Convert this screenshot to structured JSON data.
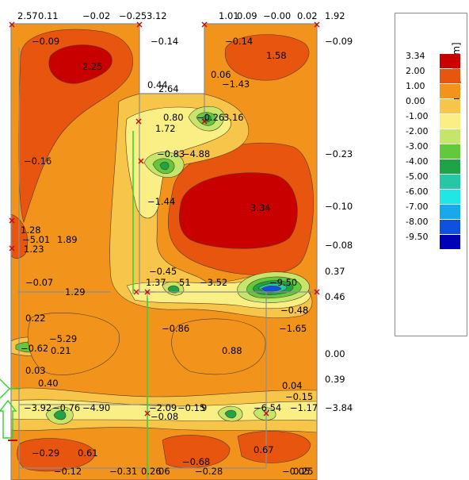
{
  "legend": {
    "unit_label": "mᵧ [kNm/m]",
    "entries": [
      {
        "value": "3.34",
        "color": "#c80000"
      },
      {
        "value": "2.00",
        "color": "#e8550f"
      },
      {
        "value": "1.00",
        "color": "#f2941c"
      },
      {
        "value": "0.00",
        "color": "#f6c549"
      },
      {
        "value": "-1.00",
        "color": "#f9ef84"
      },
      {
        "value": "-2.00",
        "color": "#c5e66b"
      },
      {
        "value": "-3.00",
        "color": "#63c93c"
      },
      {
        "value": "-4.00",
        "color": "#1ea347"
      },
      {
        "value": "-5.00",
        "color": "#27c6a4"
      },
      {
        "value": "-6.00",
        "color": "#20e6e6"
      },
      {
        "value": "-7.00",
        "color": "#18a8ee"
      },
      {
        "value": "-8.00",
        "color": "#1050e0"
      },
      {
        "value": "-9.50",
        "color": "#0000b4"
      }
    ]
  },
  "contour_values": [
    {
      "id": "v1",
      "text": "2.57"
    },
    {
      "id": "v2",
      "text": "0.11"
    },
    {
      "id": "v3",
      "text": "−0.02"
    },
    {
      "id": "v4",
      "text": "−0.25"
    },
    {
      "id": "v5",
      "text": "3.12"
    },
    {
      "id": "v6",
      "text": "1.01"
    },
    {
      "id": "v7",
      "text": "0.09"
    },
    {
      "id": "v8",
      "text": "−0.00"
    },
    {
      "id": "v9",
      "text": "0.02"
    },
    {
      "id": "v10",
      "text": "1.92"
    },
    {
      "id": "v11",
      "text": "−0.09"
    },
    {
      "id": "v12",
      "text": "−0.14"
    },
    {
      "id": "v13",
      "text": "−0.14"
    },
    {
      "id": "v14",
      "text": "−0.09"
    },
    {
      "id": "v15",
      "text": "2.25"
    },
    {
      "id": "v16",
      "text": "1.58"
    },
    {
      "id": "v17",
      "text": "0.06"
    },
    {
      "id": "v18",
      "text": "−1.43"
    },
    {
      "id": "v19",
      "text": "0.44"
    },
    {
      "id": "v20",
      "text": "2.64"
    },
    {
      "id": "v21",
      "text": "0.80"
    },
    {
      "id": "v22",
      "text": "−0.26"
    },
    {
      "id": "v23",
      "text": "3.16"
    },
    {
      "id": "v24",
      "text": "1.72"
    },
    {
      "id": "v25",
      "text": "−0.16"
    },
    {
      "id": "v26",
      "text": "−0.83"
    },
    {
      "id": "v27",
      "text": "−4.88"
    },
    {
      "id": "v28",
      "text": "−0.23"
    },
    {
      "id": "v29",
      "text": "−1.44"
    },
    {
      "id": "v30",
      "text": "3.34"
    },
    {
      "id": "v31",
      "text": "−0.10"
    },
    {
      "id": "v32",
      "text": "1.28"
    },
    {
      "id": "v33",
      "text": "−5.01"
    },
    {
      "id": "v34",
      "text": "1.89"
    },
    {
      "id": "v35",
      "text": "1.23"
    },
    {
      "id": "v36",
      "text": "−0.08"
    },
    {
      "id": "v37",
      "text": "0.37"
    },
    {
      "id": "v38",
      "text": "−0.45"
    },
    {
      "id": "v39",
      "text": "−0.07"
    },
    {
      "id": "v40",
      "text": "1.29"
    },
    {
      "id": "v41",
      "text": "1.37"
    },
    {
      "id": "v42",
      "text": "51"
    },
    {
      "id": "v43",
      "text": "−3.52"
    },
    {
      "id": "v44",
      "text": "−9.50"
    },
    {
      "id": "v45",
      "text": "0.46"
    },
    {
      "id": "v46",
      "text": "−0.48"
    },
    {
      "id": "v47",
      "text": "8"
    },
    {
      "id": "v48",
      "text": "0.22"
    },
    {
      "id": "v49",
      "text": "−0.86"
    },
    {
      "id": "v50",
      "text": "−1.65"
    },
    {
      "id": "v51",
      "text": "−5.29"
    },
    {
      "id": "v52",
      "text": "−0.62"
    },
    {
      "id": "v53",
      "text": "0.21"
    },
    {
      "id": "v54",
      "text": "0.88"
    },
    {
      "id": "v55",
      "text": "0.00"
    },
    {
      "id": "v56",
      "text": "0.03"
    },
    {
      "id": "v57",
      "text": "0.39"
    },
    {
      "id": "v58",
      "text": "0.40"
    },
    {
      "id": "v59",
      "text": "0.04"
    },
    {
      "id": "v60",
      "text": "−0.15"
    },
    {
      "id": "v61",
      "text": "−3.92"
    },
    {
      "id": "v62",
      "text": "−0.76"
    },
    {
      "id": "v63",
      "text": "−4.90"
    },
    {
      "id": "v64",
      "text": "−2.09"
    },
    {
      "id": "v65",
      "text": "−0.15"
    },
    {
      "id": "v66",
      "text": "9"
    },
    {
      "id": "v67",
      "text": "−6.54"
    },
    {
      "id": "v68",
      "text": "−1.17"
    },
    {
      "id": "v69",
      "text": "−3.84"
    },
    {
      "id": "v70",
      "text": "−0.08"
    },
    {
      "id": "v71",
      "text": "−0.29"
    },
    {
      "id": "v72",
      "text": "0.61"
    },
    {
      "id": "v73",
      "text": "0.67"
    },
    {
      "id": "v74",
      "text": "−0.68"
    },
    {
      "id": "v75",
      "text": "−0.12"
    },
    {
      "id": "v76",
      "text": "−0.31"
    },
    {
      "id": "v77",
      "text": "0.26"
    },
    {
      "id": "v78",
      "text": "06"
    },
    {
      "id": "v79",
      "text": "−0.28"
    },
    {
      "id": "v80",
      "text": "−0.05"
    },
    {
      "id": "v81",
      "text": "0.25"
    }
  ]
}
